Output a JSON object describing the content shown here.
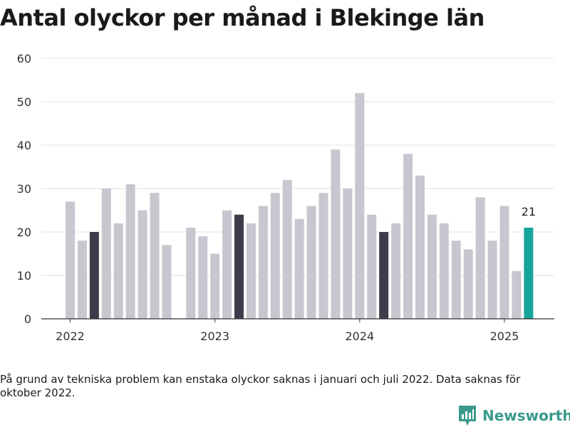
{
  "colors": {
    "bar": "#c8c7d0",
    "highlight_month": "#3c3c4a",
    "latest": "#17a59a",
    "grid": "#e2e2e2",
    "axis": "#333333",
    "brand": "#3a9a8c"
  },
  "chart_data": {
    "type": "bar",
    "title": "Antal olyckor per månad i Blekinge län",
    "xlabel": "",
    "ylabel": "",
    "ylim": [
      0,
      60
    ],
    "yticks": [
      0,
      10,
      20,
      30,
      40,
      50,
      60
    ],
    "grid": true,
    "legend": "none",
    "year_ticks": [
      {
        "label": "2022",
        "month_index": 0
      },
      {
        "label": "2023",
        "month_index": 12
      },
      {
        "label": "2024",
        "month_index": 24
      },
      {
        "label": "2025",
        "month_index": 36
      }
    ],
    "months": [
      "2022-01",
      "2022-02",
      "2022-03",
      "2022-04",
      "2022-05",
      "2022-06",
      "2022-07",
      "2022-08",
      "2022-09",
      "2022-10",
      "2022-11",
      "2022-12",
      "2023-01",
      "2023-02",
      "2023-03",
      "2023-04",
      "2023-05",
      "2023-06",
      "2023-07",
      "2023-08",
      "2023-09",
      "2023-10",
      "2023-11",
      "2023-12",
      "2024-01",
      "2024-02",
      "2024-03",
      "2024-04",
      "2024-05",
      "2024-06",
      "2024-07",
      "2024-08",
      "2024-09",
      "2024-10",
      "2024-11",
      "2024-12",
      "2025-01",
      "2025-02",
      "2025-03"
    ],
    "values": [
      27,
      18,
      20,
      30,
      22,
      31,
      25,
      29,
      17,
      null,
      21,
      19,
      15,
      25,
      24,
      22,
      26,
      29,
      32,
      23,
      26,
      29,
      39,
      30,
      52,
      24,
      20,
      22,
      38,
      33,
      24,
      22,
      18,
      16,
      28,
      18,
      26,
      11,
      21
    ],
    "highlighted_months": [
      "2022-03",
      "2023-03",
      "2024-03"
    ],
    "latest_month": "2025-03",
    "data_labels": [
      {
        "month": "2025-03",
        "text": "21"
      }
    ]
  },
  "footnote": "På grund av tekniska problem kan enstaka olyckor saknas i januari och juli 2022. Data saknas för oktober 2022.",
  "brand": {
    "name": "Newsworthy",
    "icon": "newsworthy-logo-icon"
  }
}
